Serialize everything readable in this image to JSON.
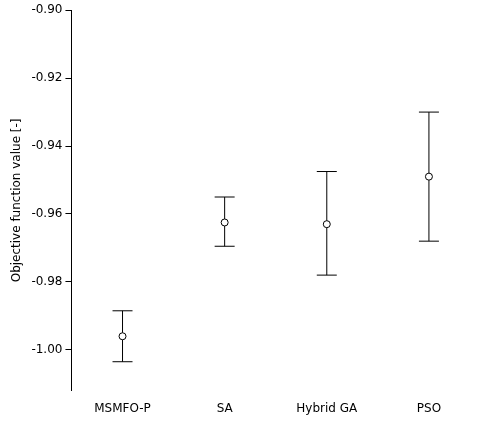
{
  "chart_data": {
    "type": "errorbar",
    "y_label": "Objective function value [-]",
    "categories": [
      "MSMFO-P",
      "SA",
      "Hybrid GA",
      "PSO"
    ],
    "values": [
      -0.996,
      -0.9625,
      -0.963,
      -0.949
    ],
    "lower": [
      -1.0035,
      -0.9695,
      -0.978,
      -0.968
    ],
    "upper": [
      -0.9885,
      -0.955,
      -0.9475,
      -0.93
    ],
    "color": "#000000",
    "marker": "open_circle",
    "ylim": [
      -1.012,
      -0.9
    ],
    "yticks": [
      {
        "value": -1.0,
        "label": "-1.00"
      },
      {
        "value": -0.98,
        "label": "-0.98"
      },
      {
        "value": -0.96,
        "label": "-0.96"
      },
      {
        "value": -0.94,
        "label": "-0.94"
      },
      {
        "value": -0.92,
        "label": "-0.92"
      },
      {
        "value": -0.9,
        "label": "-0.90"
      }
    ],
    "grid": false
  }
}
